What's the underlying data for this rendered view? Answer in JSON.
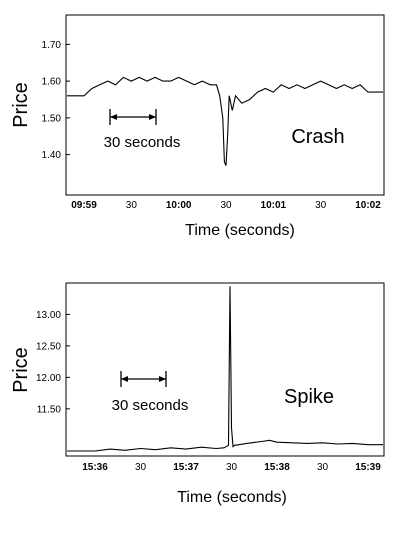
{
  "chart_data": [
    {
      "type": "line",
      "name_label": "Crash",
      "ylabel": "Price",
      "xlabel": "Time (seconds)",
      "yticks": [
        "1.40",
        "1.50",
        "1.60",
        "1.70"
      ],
      "ylim": [
        1.29,
        1.78
      ],
      "xticks": [
        {
          "label": "09:59",
          "bold": true
        },
        {
          "label": "30",
          "bold": false
        },
        {
          "label": "10:00",
          "bold": true
        },
        {
          "label": "30",
          "bold": false
        },
        {
          "label": "10:01",
          "bold": true
        },
        {
          "label": "30",
          "bold": false
        },
        {
          "label": "10:02",
          "bold": true
        }
      ],
      "scale_annotation": "30 seconds",
      "series": [
        {
          "x": [
            0,
            5,
            10,
            15,
            20,
            25,
            30,
            35,
            40,
            45,
            50,
            55,
            60,
            65,
            70,
            75,
            80,
            84,
            86,
            88,
            89,
            90,
            91,
            92,
            94,
            96,
            100,
            105,
            110,
            115,
            120,
            125,
            130,
            135,
            140,
            145,
            150,
            155,
            160,
            165,
            170,
            175,
            180
          ],
          "y": [
            1.56,
            1.58,
            1.59,
            1.6,
            1.59,
            1.61,
            1.6,
            1.61,
            1.6,
            1.61,
            1.6,
            1.6,
            1.61,
            1.6,
            1.59,
            1.6,
            1.59,
            1.59,
            1.56,
            1.5,
            1.38,
            1.37,
            1.45,
            1.56,
            1.52,
            1.56,
            1.54,
            1.55,
            1.57,
            1.58,
            1.57,
            1.59,
            1.58,
            1.59,
            1.58,
            1.59,
            1.6,
            1.59,
            1.58,
            1.59,
            1.58,
            1.59,
            1.57
          ]
        }
      ]
    },
    {
      "type": "line",
      "name_label": "Spike",
      "ylabel": "Price",
      "xlabel": "Time (seconds)",
      "yticks": [
        "11.50",
        "12.00",
        "12.50",
        "13.00"
      ],
      "ylim": [
        10.75,
        13.5
      ],
      "xticks": [
        {
          "label": "15:36",
          "bold": true
        },
        {
          "label": "30",
          "bold": false
        },
        {
          "label": "15:37",
          "bold": true
        },
        {
          "label": "30",
          "bold": false
        },
        {
          "label": "15:38",
          "bold": true
        },
        {
          "label": "30",
          "bold": false
        },
        {
          "label": "15:39",
          "bold": true
        }
      ],
      "scale_annotation": "30 seconds",
      "series": [
        {
          "x": [
            0,
            10,
            20,
            30,
            40,
            50,
            60,
            70,
            80,
            85,
            88,
            89,
            90,
            91,
            92,
            95,
            100,
            110,
            115,
            120,
            130,
            140,
            150,
            160,
            170,
            180
          ],
          "y": [
            10.83,
            10.86,
            10.84,
            10.87,
            10.85,
            10.88,
            10.86,
            10.89,
            10.87,
            10.88,
            10.92,
            13.45,
            11.2,
            10.9,
            10.92,
            10.93,
            10.95,
            10.98,
            11.0,
            10.97,
            10.96,
            10.95,
            10.96,
            10.94,
            10.95,
            10.93
          ]
        }
      ]
    }
  ]
}
